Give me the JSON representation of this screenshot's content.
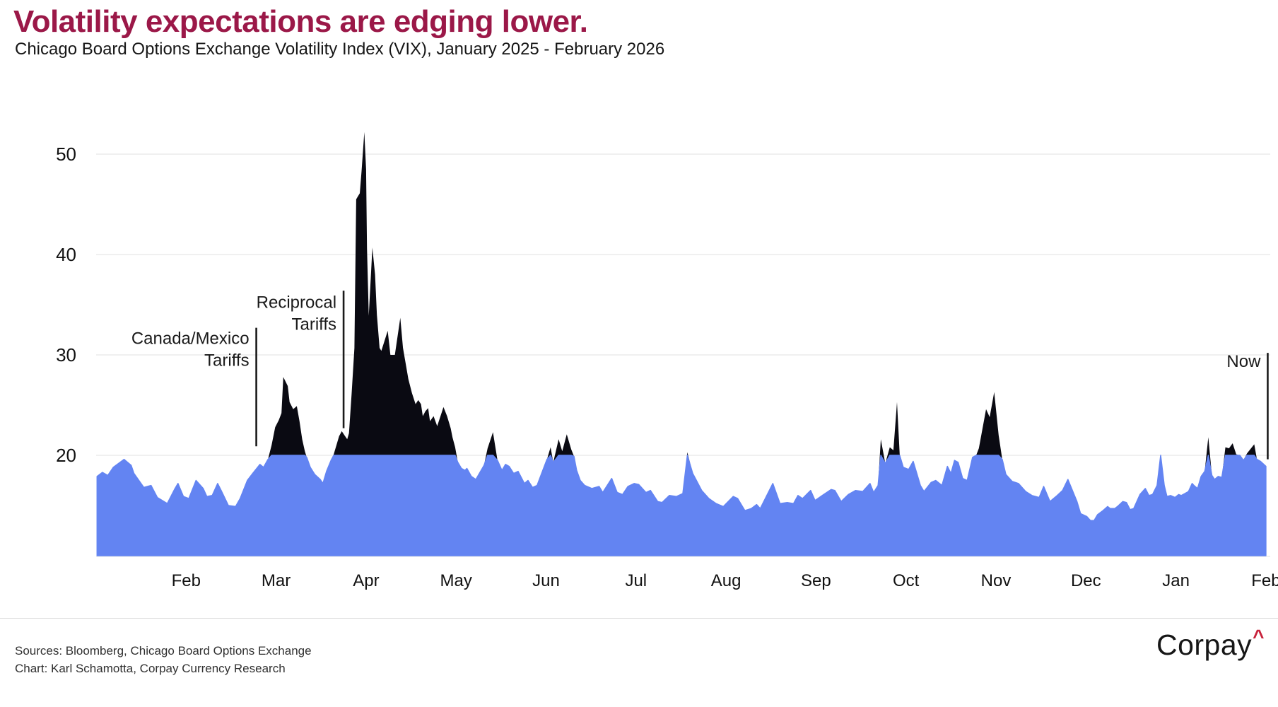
{
  "header": {
    "title": "Volatility expectations are edging lower.",
    "subtitle": "Chicago Board Options Exchange Volatility Index (VIX), January 2025 - February 2026"
  },
  "footer": {
    "sources_line1": "Sources: Bloomberg, Chicago Board Options Exchange",
    "sources_line2": "Chart: Karl Schamotta, Corpay Currency Research",
    "logo_text": "Corpay",
    "logo_caret": "^"
  },
  "colors": {
    "title_accent": "#9B1848",
    "area_below_threshold": "#6384F2",
    "area_above_threshold": "#0A0A12",
    "gridline": "#ececec",
    "axis_text": "#111111",
    "annotation": "#1a1a1a",
    "logo_caret": "#C8233C"
  },
  "chart_data": {
    "type": "area",
    "title": "Volatility expectations are edging lower.",
    "subtitle": "Chicago Board Options Exchange Volatility Index (VIX), January 2025 - February 2026",
    "series_name": "VIX",
    "threshold": 20,
    "grid": true,
    "ylim": [
      10,
      55
    ],
    "y_axis": {
      "tick_values": [
        20,
        30,
        40,
        50
      ]
    },
    "x_axis": {
      "unit": "months since Jan 1 2025",
      "tick_labels": [
        "Feb",
        "Mar",
        "Apr",
        "May",
        "Jun",
        "Jul",
        "Aug",
        "Sep",
        "Oct",
        "Nov",
        "Dec",
        "Jan",
        "Feb"
      ],
      "tick_month_positions": [
        1,
        2,
        3,
        4,
        5,
        6,
        7,
        8,
        9,
        10,
        11,
        12,
        13
      ]
    },
    "annotations": [
      {
        "lines": [
          "Canada/Mexico",
          "Tariffs"
        ],
        "x_month": 1.78,
        "line_top_value": 32.7,
        "line_bottom_value": 20.9,
        "label_values": [
          31.1,
          28.9
        ]
      },
      {
        "lines": [
          "Reciprocal",
          "Tariffs"
        ],
        "x_month": 2.75,
        "line_top_value": 36.4,
        "line_bottom_value": 22.7,
        "label_values": [
          34.7,
          32.5
        ]
      },
      {
        "lines": [
          "Now"
        ],
        "x_month": 13.02,
        "line_top_value": 30.2,
        "line_bottom_value": 19.6,
        "label_values": [
          28.8
        ]
      }
    ],
    "points": [
      [
        0.01,
        17.9
      ],
      [
        0.07,
        18.3
      ],
      [
        0.13,
        18.0
      ],
      [
        0.19,
        18.8
      ],
      [
        0.31,
        19.6
      ],
      [
        0.39,
        19.0
      ],
      [
        0.42,
        18.2
      ],
      [
        0.53,
        16.8
      ],
      [
        0.61,
        17.0
      ],
      [
        0.68,
        15.8
      ],
      [
        0.79,
        15.2
      ],
      [
        0.87,
        16.6
      ],
      [
        0.91,
        17.2
      ],
      [
        0.97,
        15.9
      ],
      [
        1.03,
        15.7
      ],
      [
        1.11,
        17.5
      ],
      [
        1.19,
        16.7
      ],
      [
        1.23,
        15.9
      ],
      [
        1.29,
        16.0
      ],
      [
        1.35,
        17.2
      ],
      [
        1.39,
        16.5
      ],
      [
        1.47,
        15.0
      ],
      [
        1.55,
        14.9
      ],
      [
        1.6,
        15.7
      ],
      [
        1.68,
        17.5
      ],
      [
        1.74,
        18.2
      ],
      [
        1.82,
        19.1
      ],
      [
        1.86,
        18.8
      ],
      [
        1.91,
        19.6
      ],
      [
        1.95,
        21.0
      ],
      [
        1.99,
        22.8
      ],
      [
        2.03,
        23.5
      ],
      [
        2.06,
        24.2
      ],
      [
        2.08,
        27.8
      ],
      [
        2.13,
        26.9
      ],
      [
        2.15,
        25.3
      ],
      [
        2.19,
        24.6
      ],
      [
        2.23,
        24.9
      ],
      [
        2.26,
        23.4
      ],
      [
        2.29,
        21.6
      ],
      [
        2.32,
        20.4
      ],
      [
        2.34,
        19.8
      ],
      [
        2.38,
        18.8
      ],
      [
        2.43,
        18.1
      ],
      [
        2.49,
        17.6
      ],
      [
        2.52,
        17.2
      ],
      [
        2.56,
        18.4
      ],
      [
        2.61,
        19.5
      ],
      [
        2.64,
        20.1
      ],
      [
        2.68,
        21.3
      ],
      [
        2.7,
        21.9
      ],
      [
        2.73,
        22.4
      ],
      [
        2.76,
        22.0
      ],
      [
        2.79,
        21.6
      ],
      [
        2.81,
        22.2
      ],
      [
        2.84,
        26.2
      ],
      [
        2.87,
        30.7
      ],
      [
        2.89,
        45.5
      ],
      [
        2.91,
        45.8
      ],
      [
        2.93,
        46.1
      ],
      [
        2.95,
        48.3
      ],
      [
        2.98,
        52.2
      ],
      [
        3.0,
        48.5
      ],
      [
        3.01,
        40.6
      ],
      [
        3.03,
        33.9
      ],
      [
        3.07,
        40.7
      ],
      [
        3.1,
        38.0
      ],
      [
        3.12,
        34.0
      ],
      [
        3.15,
        30.7
      ],
      [
        3.17,
        30.4
      ],
      [
        3.24,
        32.4
      ],
      [
        3.27,
        30.0
      ],
      [
        3.32,
        30.0
      ],
      [
        3.38,
        33.7
      ],
      [
        3.41,
        30.7
      ],
      [
        3.47,
        27.6
      ],
      [
        3.51,
        26.2
      ],
      [
        3.55,
        25.1
      ],
      [
        3.58,
        25.5
      ],
      [
        3.61,
        25.1
      ],
      [
        3.63,
        23.9
      ],
      [
        3.66,
        24.4
      ],
      [
        3.69,
        24.7
      ],
      [
        3.71,
        23.4
      ],
      [
        3.75,
        23.9
      ],
      [
        3.79,
        22.9
      ],
      [
        3.86,
        24.8
      ],
      [
        3.9,
        23.9
      ],
      [
        3.94,
        22.7
      ],
      [
        3.96,
        21.8
      ],
      [
        3.99,
        20.8
      ],
      [
        4.02,
        19.3
      ],
      [
        4.06,
        18.7
      ],
      [
        4.1,
        18.5
      ],
      [
        4.12,
        18.7
      ],
      [
        4.17,
        17.9
      ],
      [
        4.22,
        17.6
      ],
      [
        4.31,
        19.0
      ],
      [
        4.35,
        20.7
      ],
      [
        4.41,
        22.3
      ],
      [
        4.46,
        19.5
      ],
      [
        4.51,
        18.5
      ],
      [
        4.55,
        19.1
      ],
      [
        4.59,
        18.9
      ],
      [
        4.64,
        18.2
      ],
      [
        4.69,
        18.4
      ],
      [
        4.76,
        17.2
      ],
      [
        4.8,
        17.5
      ],
      [
        4.85,
        16.8
      ],
      [
        4.9,
        17.0
      ],
      [
        5.01,
        19.6
      ],
      [
        5.05,
        20.8
      ],
      [
        5.08,
        19.3
      ],
      [
        5.14,
        21.6
      ],
      [
        5.18,
        20.4
      ],
      [
        5.23,
        22.1
      ],
      [
        5.28,
        20.6
      ],
      [
        5.31,
        19.9
      ],
      [
        5.34,
        18.5
      ],
      [
        5.38,
        17.5
      ],
      [
        5.43,
        17.0
      ],
      [
        5.51,
        16.7
      ],
      [
        5.59,
        16.9
      ],
      [
        5.63,
        16.3
      ],
      [
        5.73,
        17.7
      ],
      [
        5.79,
        16.3
      ],
      [
        5.85,
        16.1
      ],
      [
        5.91,
        16.9
      ],
      [
        5.98,
        17.2
      ],
      [
        6.03,
        17.1
      ],
      [
        6.11,
        16.3
      ],
      [
        6.16,
        16.5
      ],
      [
        6.24,
        15.4
      ],
      [
        6.29,
        15.3
      ],
      [
        6.37,
        16.0
      ],
      [
        6.45,
        15.9
      ],
      [
        6.52,
        16.2
      ],
      [
        6.57,
        20.3
      ],
      [
        6.63,
        18.2
      ],
      [
        6.66,
        17.7
      ],
      [
        6.73,
        16.5
      ],
      [
        6.81,
        15.7
      ],
      [
        6.89,
        15.2
      ],
      [
        6.97,
        14.9
      ],
      [
        7.08,
        15.9
      ],
      [
        7.13,
        15.7
      ],
      [
        7.21,
        14.5
      ],
      [
        7.28,
        14.7
      ],
      [
        7.34,
        15.1
      ],
      [
        7.38,
        14.7
      ],
      [
        7.52,
        17.2
      ],
      [
        7.6,
        15.2
      ],
      [
        7.68,
        15.3
      ],
      [
        7.75,
        15.2
      ],
      [
        7.8,
        16.0
      ],
      [
        7.85,
        15.7
      ],
      [
        7.94,
        16.5
      ],
      [
        7.99,
        15.5
      ],
      [
        8.07,
        16.0
      ],
      [
        8.17,
        16.6
      ],
      [
        8.21,
        16.5
      ],
      [
        8.28,
        15.4
      ],
      [
        8.36,
        16.1
      ],
      [
        8.44,
        16.5
      ],
      [
        8.52,
        16.4
      ],
      [
        8.6,
        17.2
      ],
      [
        8.64,
        16.3
      ],
      [
        8.69,
        17.0
      ],
      [
        8.72,
        21.6
      ],
      [
        8.77,
        19.2
      ],
      [
        8.82,
        20.8
      ],
      [
        8.86,
        20.5
      ],
      [
        8.9,
        25.3
      ],
      [
        8.93,
        20.1
      ],
      [
        8.97,
        18.8
      ],
      [
        9.03,
        18.6
      ],
      [
        9.08,
        19.4
      ],
      [
        9.16,
        17.0
      ],
      [
        9.2,
        16.4
      ],
      [
        9.28,
        17.3
      ],
      [
        9.33,
        17.5
      ],
      [
        9.4,
        17.0
      ],
      [
        9.46,
        18.9
      ],
      [
        9.5,
        18.2
      ],
      [
        9.54,
        19.5
      ],
      [
        9.58,
        19.3
      ],
      [
        9.63,
        17.7
      ],
      [
        9.68,
        17.5
      ],
      [
        9.74,
        19.8
      ],
      [
        9.78,
        20.0
      ],
      [
        9.81,
        20.7
      ],
      [
        9.89,
        24.6
      ],
      [
        9.93,
        23.8
      ],
      [
        9.98,
        26.3
      ],
      [
        10.03,
        22.0
      ],
      [
        10.07,
        19.6
      ],
      [
        10.11,
        18.1
      ],
      [
        10.18,
        17.4
      ],
      [
        10.25,
        17.2
      ],
      [
        10.33,
        16.4
      ],
      [
        10.4,
        16.0
      ],
      [
        10.48,
        15.8
      ],
      [
        10.53,
        16.9
      ],
      [
        10.6,
        15.4
      ],
      [
        10.68,
        16.0
      ],
      [
        10.74,
        16.5
      ],
      [
        10.8,
        17.6
      ],
      [
        10.9,
        15.4
      ],
      [
        10.94,
        14.2
      ],
      [
        11.01,
        13.9
      ],
      [
        11.05,
        13.5
      ],
      [
        11.09,
        13.5
      ],
      [
        11.13,
        14.1
      ],
      [
        11.19,
        14.5
      ],
      [
        11.24,
        14.9
      ],
      [
        11.27,
        14.7
      ],
      [
        11.32,
        14.7
      ],
      [
        11.35,
        14.9
      ],
      [
        11.41,
        15.4
      ],
      [
        11.45,
        15.3
      ],
      [
        11.49,
        14.6
      ],
      [
        11.53,
        14.7
      ],
      [
        11.6,
        16.1
      ],
      [
        11.66,
        16.7
      ],
      [
        11.7,
        16.0
      ],
      [
        11.74,
        16.1
      ],
      [
        11.79,
        17.0
      ],
      [
        11.83,
        20.1
      ],
      [
        11.87,
        17.0
      ],
      [
        11.9,
        15.9
      ],
      [
        11.94,
        16.0
      ],
      [
        11.99,
        15.8
      ],
      [
        12.03,
        16.1
      ],
      [
        12.06,
        16.0
      ],
      [
        12.1,
        16.2
      ],
      [
        12.14,
        16.4
      ],
      [
        12.18,
        17.2
      ],
      [
        12.2,
        17.0
      ],
      [
        12.24,
        16.7
      ],
      [
        12.28,
        17.9
      ],
      [
        12.32,
        18.4
      ],
      [
        12.36,
        21.8
      ],
      [
        12.4,
        18.0
      ],
      [
        12.43,
        17.6
      ],
      [
        12.47,
        17.9
      ],
      [
        12.51,
        17.8
      ],
      [
        12.55,
        20.8
      ],
      [
        12.59,
        20.7
      ],
      [
        12.63,
        21.2
      ],
      [
        12.67,
        20.1
      ],
      [
        12.71,
        20.0
      ],
      [
        12.75,
        19.5
      ],
      [
        12.79,
        20.2
      ],
      [
        12.87,
        21.1
      ],
      [
        12.9,
        19.6
      ],
      [
        12.94,
        19.4
      ],
      [
        13.0,
        18.9
      ]
    ]
  }
}
